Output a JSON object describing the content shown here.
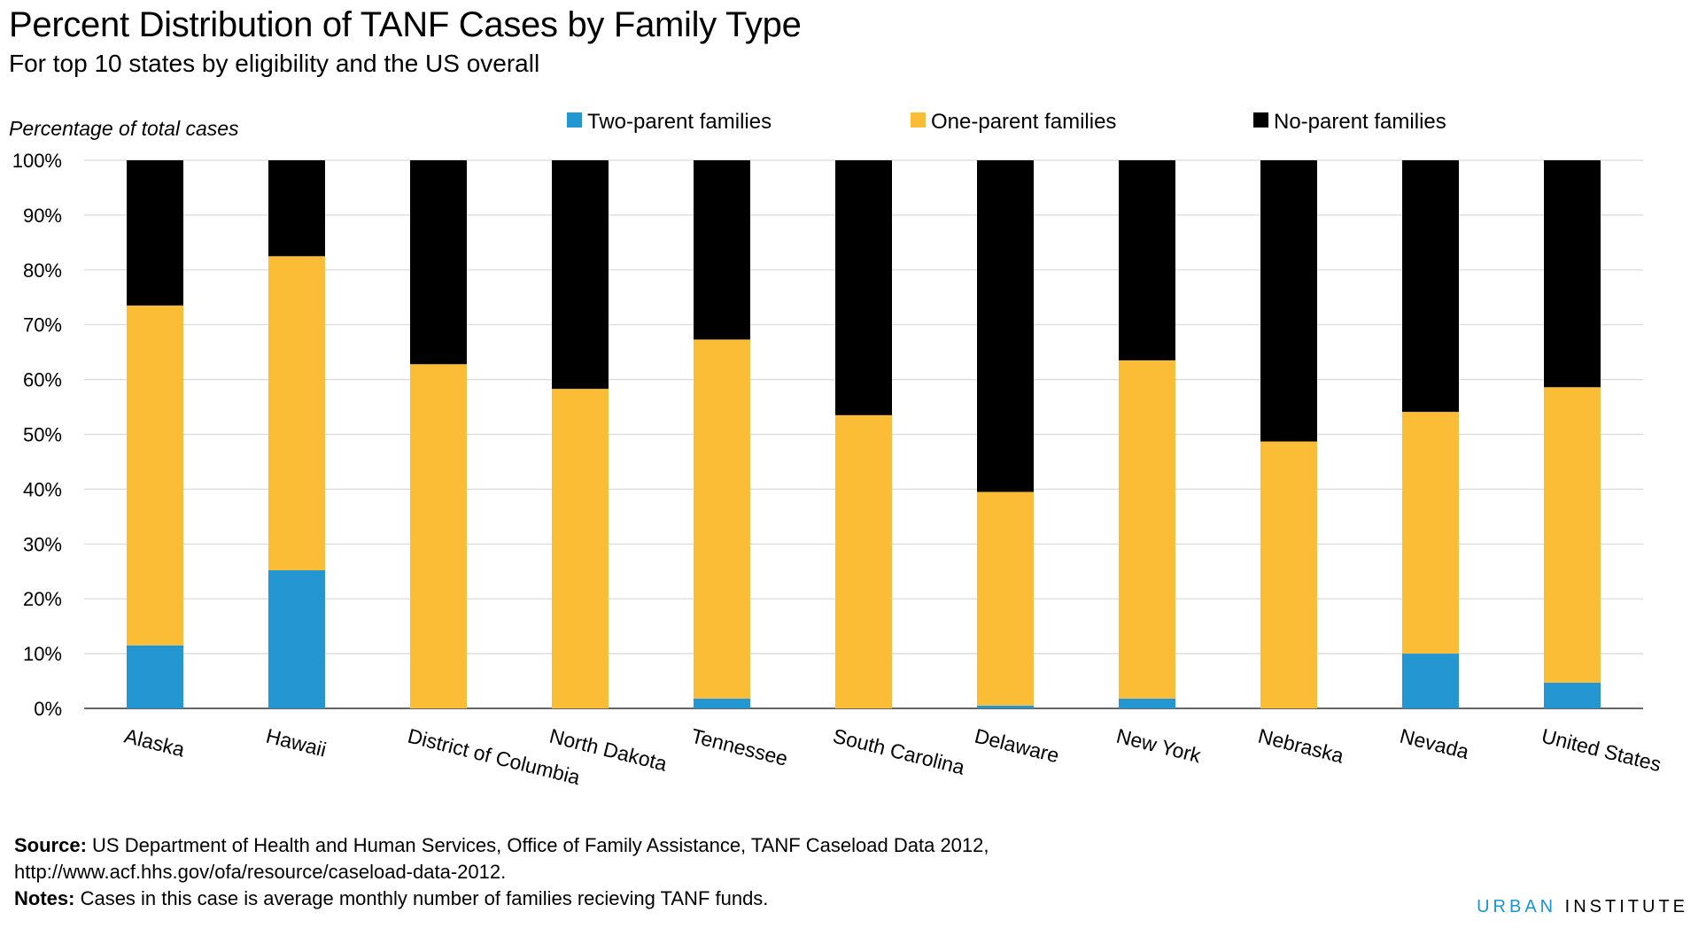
{
  "title": "Percent Distribution of TANF Cases by Family Type",
  "subtitle": "For top 10 states by eligibility and the US overall",
  "footer": {
    "source_label": "Source:",
    "source_text": " US Department of Health and Human Services, Office of Family Assistance, TANF Caseload Data 2012,",
    "source_url": "http://www.acf.hhs.gov/ofa/resource/caseload-data-2012.",
    "notes_label": "Notes:",
    "notes_text": "  Cases in this case is average monthly number of families recieving TANF funds.",
    "brand_part1": "URBAN",
    "brand_part2": " INSTITUTE"
  },
  "colors": {
    "two_parent": "#2497d3",
    "one_parent": "#fbbd35",
    "no_parent": "#000000",
    "grid": "#d9d9d9"
  },
  "chart_data": {
    "type": "bar",
    "stacked": true,
    "ylabel": "Percentage of total cases",
    "ylim": [
      0,
      100
    ],
    "yticks": [
      "0%",
      "10%",
      "20%",
      "30%",
      "40%",
      "50%",
      "60%",
      "70%",
      "80%",
      "90%",
      "100%"
    ],
    "grid": true,
    "legend_position": "top",
    "categories": [
      "Alaska",
      "Hawaii",
      "District of Columbia",
      "North Dakota",
      "Tennessee",
      "South Carolina",
      "Delaware",
      "New York",
      "Nebraska",
      "Nevada",
      "United States"
    ],
    "series": [
      {
        "name": "Two-parent families",
        "color": "#2497d3",
        "values": [
          11.5,
          25.2,
          0,
          0,
          1.8,
          0,
          0.5,
          1.8,
          0,
          10,
          4.7
        ]
      },
      {
        "name": "One-parent families",
        "color": "#fbbd35",
        "values": [
          62,
          57.3,
          62.8,
          58.3,
          65.5,
          53.5,
          39,
          61.7,
          48.7,
          44.1,
          53.9
        ]
      },
      {
        "name": "No-parent families",
        "color": "#000000",
        "values": [
          26.5,
          17.5,
          37.2,
          41.7,
          32.7,
          46.5,
          60.5,
          36.5,
          51.3,
          45.9,
          41.4
        ]
      }
    ]
  }
}
